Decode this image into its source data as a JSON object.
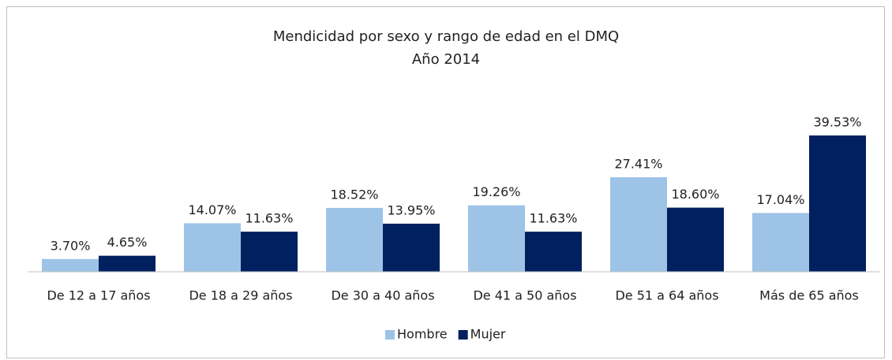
{
  "chart_data": {
    "type": "bar",
    "title": "Mendicidad por sexo y rango de edad en el DMQ",
    "subtitle": "Año 2014",
    "categories": [
      "De 12 a 17 años",
      "De 18 a 29 años",
      "De 30 a 40 años",
      "De 41 a 50 años",
      "De 51 a 64 años",
      "Más de 65 años"
    ],
    "series": [
      {
        "name": "Hombre",
        "color": "#9dc3e6",
        "values": [
          3.7,
          14.07,
          18.52,
          19.26,
          27.41,
          17.04
        ],
        "value_labels": [
          "3.70%",
          "14.07%",
          "18.52%",
          "19.26%",
          "27.41%",
          "17.04%"
        ]
      },
      {
        "name": "Mujer",
        "color": "#002060",
        "values": [
          4.65,
          11.63,
          13.95,
          11.63,
          18.6,
          39.53
        ],
        "value_labels": [
          "4.65%",
          "11.63%",
          "13.95%",
          "11.63%",
          "18.60%",
          "39.53%"
        ]
      }
    ],
    "ylim": [
      0,
      45
    ],
    "legend": "bottom"
  }
}
